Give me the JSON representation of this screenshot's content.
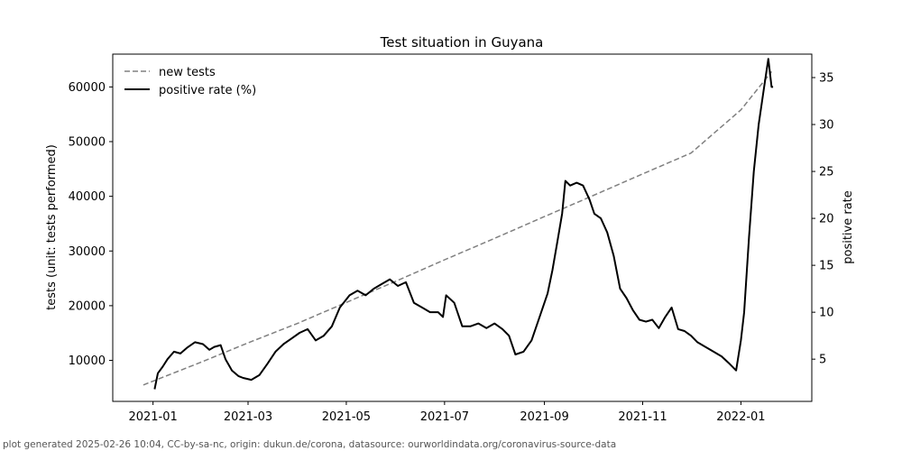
{
  "chart_data": {
    "type": "line",
    "title": "Test situation in Guyana",
    "y_left_label": "tests (unit: tests performed)",
    "y_right_label": "positive rate",
    "x_ticks": [
      "2021-01",
      "2021-03",
      "2021-05",
      "2021-07",
      "2021-09",
      "2021-11",
      "2022-01"
    ],
    "x_range": [
      "2020-12-07",
      "2022-02-14"
    ],
    "y_left_ticks": [
      10000,
      20000,
      30000,
      40000,
      50000,
      60000
    ],
    "y_left_range": [
      2500,
      66000
    ],
    "y_right_ticks": [
      5,
      10,
      15,
      20,
      25,
      30,
      35
    ],
    "y_right_range": [
      0.5,
      37.5
    ],
    "legend": {
      "position": "top-left",
      "entries": [
        "new tests",
        "positive rate (%)"
      ]
    },
    "grid": false,
    "series": [
      {
        "name": "new tests",
        "axis": "left",
        "color": "#808080",
        "style": "dashed",
        "points": [
          [
            "2020-12-26",
            5500
          ],
          [
            "2021-02-01",
            9800
          ],
          [
            "2021-03-01",
            13200
          ],
          [
            "2021-04-01",
            16800
          ],
          [
            "2021-05-01",
            20600
          ],
          [
            "2021-06-01",
            24500
          ],
          [
            "2021-07-01",
            28400
          ],
          [
            "2021-08-01",
            32300
          ],
          [
            "2021-09-01",
            36300
          ],
          [
            "2021-10-01",
            40100
          ],
          [
            "2021-11-01",
            44100
          ],
          [
            "2021-12-01",
            47900
          ],
          [
            "2022-01-01",
            55800
          ],
          [
            "2022-01-20",
            62800
          ]
        ]
      },
      {
        "name": "positive rate (%)",
        "axis": "right",
        "color": "#000000",
        "style": "solid",
        "points": [
          [
            "2021-01-02",
            1.8
          ],
          [
            "2021-01-04",
            3.5
          ],
          [
            "2021-01-07",
            4.2
          ],
          [
            "2021-01-10",
            5.0
          ],
          [
            "2021-01-14",
            5.8
          ],
          [
            "2021-01-18",
            5.6
          ],
          [
            "2021-01-22",
            6.2
          ],
          [
            "2021-01-27",
            6.8
          ],
          [
            "2021-02-01",
            6.6
          ],
          [
            "2021-02-05",
            6.0
          ],
          [
            "2021-02-08",
            6.3
          ],
          [
            "2021-02-12",
            6.5
          ],
          [
            "2021-02-15",
            5.0
          ],
          [
            "2021-02-19",
            3.8
          ],
          [
            "2021-02-23",
            3.2
          ],
          [
            "2021-02-26",
            3.0
          ],
          [
            "2021-03-03",
            2.8
          ],
          [
            "2021-03-08",
            3.3
          ],
          [
            "2021-03-13",
            4.5
          ],
          [
            "2021-03-18",
            5.8
          ],
          [
            "2021-03-23",
            6.6
          ],
          [
            "2021-03-28",
            7.2
          ],
          [
            "2021-04-02",
            7.8
          ],
          [
            "2021-04-07",
            8.2
          ],
          [
            "2021-04-12",
            7.0
          ],
          [
            "2021-04-17",
            7.5
          ],
          [
            "2021-04-22",
            8.5
          ],
          [
            "2021-04-27",
            10.5
          ],
          [
            "2021-05-03",
            11.8
          ],
          [
            "2021-05-08",
            12.3
          ],
          [
            "2021-05-13",
            11.8
          ],
          [
            "2021-05-18",
            12.5
          ],
          [
            "2021-05-23",
            13.0
          ],
          [
            "2021-05-28",
            13.5
          ],
          [
            "2021-06-02",
            12.8
          ],
          [
            "2021-06-07",
            13.2
          ],
          [
            "2021-06-12",
            11.0
          ],
          [
            "2021-06-17",
            10.5
          ],
          [
            "2021-06-22",
            10.0
          ],
          [
            "2021-06-27",
            10.0
          ],
          [
            "2021-06-30",
            9.5
          ],
          [
            "2021-07-02",
            11.8
          ],
          [
            "2021-07-07",
            11.0
          ],
          [
            "2021-07-12",
            8.5
          ],
          [
            "2021-07-17",
            8.5
          ],
          [
            "2021-07-22",
            8.8
          ],
          [
            "2021-07-27",
            8.3
          ],
          [
            "2021-08-01",
            8.8
          ],
          [
            "2021-08-06",
            8.2
          ],
          [
            "2021-08-10",
            7.5
          ],
          [
            "2021-08-14",
            5.5
          ],
          [
            "2021-08-19",
            5.8
          ],
          [
            "2021-08-24",
            7.0
          ],
          [
            "2021-08-29",
            9.5
          ],
          [
            "2021-09-03",
            12.0
          ],
          [
            "2021-09-06",
            14.5
          ],
          [
            "2021-09-09",
            17.5
          ],
          [
            "2021-09-12",
            20.5
          ],
          [
            "2021-09-14",
            24.0
          ],
          [
            "2021-09-17",
            23.5
          ],
          [
            "2021-09-21",
            23.8
          ],
          [
            "2021-09-25",
            23.5
          ],
          [
            "2021-09-29",
            22.0
          ],
          [
            "2021-10-02",
            20.5
          ],
          [
            "2021-10-06",
            20.0
          ],
          [
            "2021-10-10",
            18.5
          ],
          [
            "2021-10-14",
            16.0
          ],
          [
            "2021-10-18",
            12.5
          ],
          [
            "2021-10-22",
            11.5
          ],
          [
            "2021-10-26",
            10.2
          ],
          [
            "2021-10-30",
            9.2
          ],
          [
            "2021-11-03",
            9.0
          ],
          [
            "2021-11-07",
            9.2
          ],
          [
            "2021-11-11",
            8.3
          ],
          [
            "2021-11-15",
            9.5
          ],
          [
            "2021-11-19",
            10.5
          ],
          [
            "2021-11-23",
            8.2
          ],
          [
            "2021-11-27",
            8.0
          ],
          [
            "2021-12-01",
            7.5
          ],
          [
            "2021-12-05",
            6.8
          ],
          [
            "2021-12-10",
            6.3
          ],
          [
            "2021-12-15",
            5.8
          ],
          [
            "2021-12-20",
            5.3
          ],
          [
            "2021-12-25",
            4.5
          ],
          [
            "2021-12-29",
            3.8
          ],
          [
            "2022-01-01",
            7.0
          ],
          [
            "2022-01-03",
            10.0
          ],
          [
            "2022-01-06",
            18.0
          ],
          [
            "2022-01-09",
            25.0
          ],
          [
            "2022-01-12",
            30.0
          ],
          [
            "2022-01-15",
            33.5
          ],
          [
            "2022-01-18",
            37.0
          ],
          [
            "2022-01-20",
            34.0
          ],
          [
            "2022-01-21",
            34.0
          ]
        ]
      }
    ]
  },
  "footer": "plot generated 2025-02-26 10:04, CC-by-sa-nc, origin: dukun.de/corona, datasource: ourworldindata.org/coronavirus-source-data"
}
